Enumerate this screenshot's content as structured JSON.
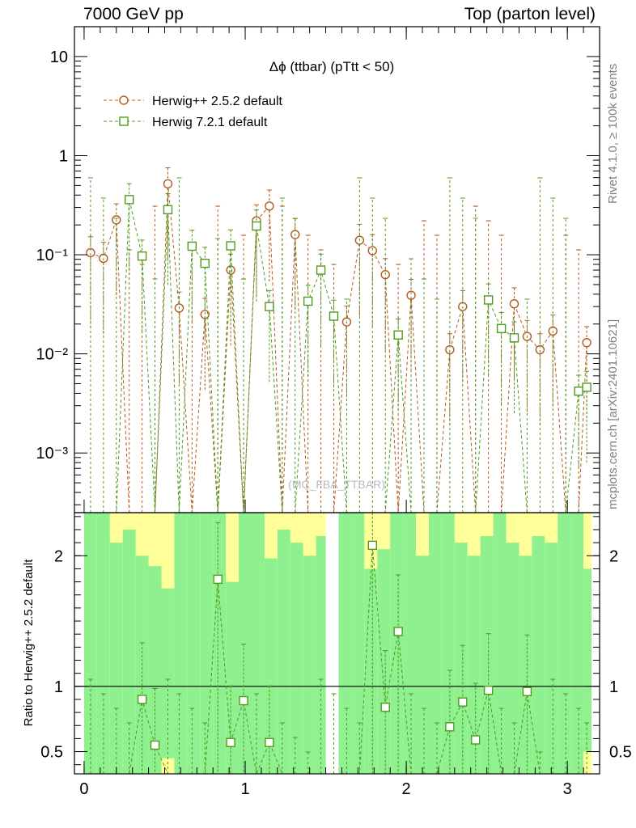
{
  "header": {
    "left": "7000 GeV pp",
    "right": "Top (parton level)"
  },
  "side_labels": {
    "rivet": "Rivet 4.1.0, ≥ 100k events",
    "mcplots": "mcplots.cern.ch [arXiv:2401.10621]"
  },
  "chart_data": [
    {
      "type": "line",
      "panel": "main",
      "title": "Δϕ (ttbar) (pTtt < 50)",
      "watermark": "(MC_FBA_TTBAR)",
      "yscale": "log",
      "ylim": [
        0.00025,
        20
      ],
      "xlim": [
        -0.06,
        3.2
      ],
      "ytick_labels": [
        "10",
        "1",
        "10⁻¹",
        "10⁻²",
        "10⁻³"
      ],
      "legend_position": "top-left",
      "series": [
        {
          "name": "Herwig++ 2.5.2 default",
          "color": "#b35a1f",
          "marker": "circle",
          "x": [
            0.04,
            0.12,
            0.2,
            0.28,
            0.36,
            0.44,
            0.52,
            0.59,
            0.67,
            0.75,
            0.83,
            0.91,
            0.99,
            1.07,
            1.15,
            1.23,
            1.31,
            1.39,
            1.47,
            1.55,
            1.63,
            1.71,
            1.79,
            1.87,
            1.95,
            2.03,
            2.11,
            2.19,
            2.27,
            2.35,
            2.43,
            2.51,
            2.59,
            2.67,
            2.75,
            2.83,
            2.91,
            2.99,
            3.07,
            3.12
          ],
          "y": [
            0.105,
            0.092,
            0.225,
            null,
            null,
            null,
            0.52,
            0.029,
            null,
            0.025,
            null,
            0.07,
            null,
            0.22,
            0.31,
            null,
            0.16,
            null,
            null,
            null,
            0.021,
            0.14,
            0.11,
            0.063,
            null,
            0.039,
            null,
            null,
            0.011,
            0.03,
            null,
            null,
            null,
            0.032,
            0.015,
            0.011,
            0.017,
            null,
            null,
            0.013
          ]
        },
        {
          "name": "Herwig 7.2.1 default",
          "color": "#4f9a1d",
          "marker": "square",
          "x": [
            0.04,
            0.12,
            0.2,
            0.28,
            0.36,
            0.44,
            0.52,
            0.59,
            0.67,
            0.75,
            0.83,
            0.91,
            0.99,
            1.07,
            1.15,
            1.23,
            1.31,
            1.39,
            1.47,
            1.55,
            1.63,
            1.71,
            1.79,
            1.87,
            1.95,
            2.03,
            2.11,
            2.19,
            2.27,
            2.35,
            2.43,
            2.51,
            2.59,
            2.67,
            2.75,
            2.83,
            2.91,
            2.99,
            3.07,
            3.12
          ],
          "y": [
            null,
            null,
            null,
            0.36,
            0.097,
            null,
            0.285,
            null,
            0.122,
            0.082,
            null,
            0.123,
            null,
            0.195,
            0.03,
            null,
            null,
            0.034,
            0.07,
            0.024,
            null,
            null,
            null,
            null,
            0.0155,
            null,
            null,
            null,
            null,
            null,
            null,
            0.035,
            0.018,
            0.0145,
            null,
            null,
            null,
            null,
            0.0042,
            0.0046
          ]
        }
      ]
    },
    {
      "type": "line",
      "panel": "ratio",
      "ylabel": "Ratio to Herwig++ 2.5.2 default",
      "ylim": [
        0.33,
        2.33
      ],
      "xlim": [
        -0.06,
        3.2
      ],
      "yticks": [
        0.5,
        1,
        2
      ],
      "ytick_labels": [
        "0.5",
        "1",
        "2"
      ],
      "xticks": [
        0,
        1,
        2,
        3
      ],
      "xtick_labels": [
        "0",
        "1",
        "2",
        "3"
      ],
      "reference_line": 1,
      "ratio_series": {
        "name": "Herwig 7.2.1 default",
        "x": [
          0.04,
          0.12,
          0.2,
          0.28,
          0.36,
          0.44,
          0.52,
          0.59,
          0.67,
          0.75,
          0.83,
          0.91,
          0.99,
          1.07,
          1.15,
          1.23,
          1.31,
          1.39,
          1.47,
          1.55,
          1.63,
          1.71,
          1.79,
          1.87,
          1.95,
          2.03,
          2.11,
          2.19,
          2.27,
          2.35,
          2.43,
          2.51,
          2.59,
          2.67,
          2.75,
          2.83,
          2.91,
          2.99,
          3.07,
          3.12
        ],
        "y": [
          null,
          null,
          null,
          null,
          0.9,
          0.55,
          null,
          null,
          null,
          null,
          1.82,
          0.57,
          0.89,
          null,
          0.57,
          null,
          null,
          null,
          null,
          null,
          null,
          null,
          2.08,
          0.84,
          1.42,
          null,
          null,
          null,
          0.69,
          0.88,
          0.59,
          0.97,
          null,
          null,
          0.96,
          null,
          null,
          null,
          null,
          null
        ]
      },
      "band_bins": {
        "x0": [
          0.0,
          0.08,
          0.16,
          0.24,
          0.32,
          0.4,
          0.48,
          0.56,
          0.64,
          0.72,
          0.8,
          0.88,
          0.96,
          1.04,
          1.12,
          1.2,
          1.28,
          1.36,
          1.44,
          1.58,
          1.66,
          1.74,
          1.82,
          1.9,
          1.98,
          2.06,
          2.14,
          2.22,
          2.3,
          2.38,
          2.46,
          2.54,
          2.62,
          2.7,
          2.78,
          2.86,
          2.94,
          3.02,
          3.1
        ],
        "x1": [
          0.08,
          0.16,
          0.24,
          0.32,
          0.4,
          0.48,
          0.56,
          0.64,
          0.72,
          0.8,
          0.88,
          0.96,
          1.04,
          1.12,
          1.2,
          1.28,
          1.36,
          1.44,
          1.5,
          1.66,
          1.74,
          1.82,
          1.9,
          1.98,
          2.06,
          2.14,
          2.22,
          2.3,
          2.38,
          2.46,
          2.54,
          2.62,
          2.7,
          2.78,
          2.86,
          2.94,
          3.02,
          3.1,
          3.15
        ],
        "green_top": [
          2.33,
          2.33,
          2.1,
          2.2,
          2.0,
          1.92,
          1.75,
          2.33,
          2.33,
          2.33,
          2.33,
          1.8,
          2.33,
          2.33,
          1.98,
          2.2,
          2.1,
          2.0,
          2.15,
          2.33,
          2.33,
          1.9,
          2.05,
          2.33,
          2.33,
          2.0,
          2.33,
          2.33,
          2.1,
          2.0,
          2.15,
          2.33,
          2.1,
          2.0,
          2.15,
          2.1,
          2.33,
          2.33,
          1.9
        ],
        "yellow_top": [
          2.33,
          2.33,
          2.33,
          2.33,
          2.33,
          2.33,
          2.33,
          2.33,
          2.33,
          2.33,
          2.33,
          2.33,
          2.33,
          2.33,
          2.33,
          2.33,
          2.33,
          2.33,
          2.33,
          2.33,
          2.33,
          2.33,
          2.33,
          2.33,
          2.33,
          2.33,
          2.33,
          2.33,
          2.33,
          2.33,
          2.33,
          2.33,
          2.33,
          2.33,
          2.33,
          2.33,
          2.33,
          2.33,
          2.33
        ],
        "green_bottom": [
          0.33,
          0.33,
          0.33,
          0.33,
          0.33,
          0.33,
          0.45,
          0.33,
          0.33,
          0.33,
          0.33,
          0.33,
          0.33,
          0.33,
          0.33,
          0.33,
          0.33,
          0.33,
          0.33,
          0.33,
          0.33,
          0.33,
          0.33,
          0.33,
          0.33,
          0.33,
          0.33,
          0.33,
          0.33,
          0.33,
          0.33,
          0.33,
          0.33,
          0.33,
          0.33,
          0.33,
          0.33,
          0.33,
          0.5
        ],
        "yellow_bottom": [
          0.33,
          0.33,
          0.33,
          0.33,
          0.33,
          0.33,
          0.33,
          0.33,
          0.33,
          0.33,
          0.33,
          0.33,
          0.33,
          0.33,
          0.33,
          0.33,
          0.33,
          0.33,
          0.33,
          0.33,
          0.33,
          0.33,
          0.33,
          0.33,
          0.33,
          0.33,
          0.33,
          0.33,
          0.33,
          0.33,
          0.33,
          0.33,
          0.33,
          0.33,
          0.33,
          0.33,
          0.33,
          0.33,
          0.33
        ],
        "green_color": "#8ff08f",
        "yellow_color": "#ffff99"
      }
    }
  ]
}
